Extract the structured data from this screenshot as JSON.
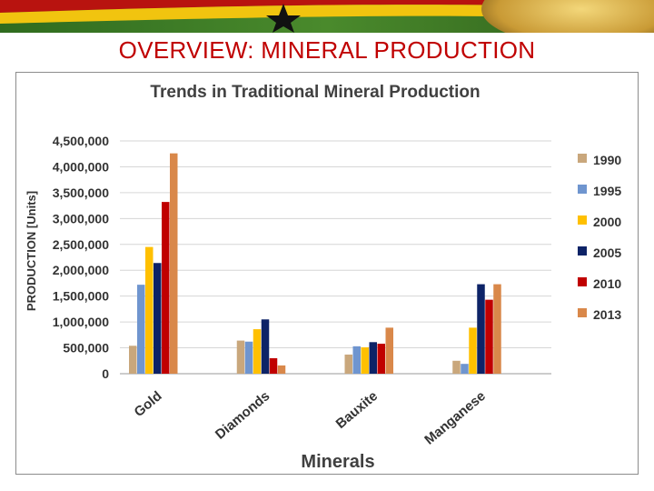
{
  "slide": {
    "title": "OVERVIEW: MINERAL PRODUCTION"
  },
  "chart_data": {
    "type": "bar",
    "title": "Trends in Traditional Mineral Production",
    "xlabel": "Minerals",
    "ylabel": "PRODUCTION [Units]",
    "ylim": [
      0,
      4500000
    ],
    "ytick_values": [
      0,
      500000,
      1000000,
      1500000,
      2000000,
      2500000,
      3000000,
      3500000,
      4000000,
      4500000
    ],
    "ytick_labels": [
      "0",
      "500,000",
      "1,000,000",
      "1,500,000",
      "2,000,000",
      "2,500,000",
      "3,000,000",
      "3,500,000",
      "4,000,000",
      "4,500,000"
    ],
    "grid": true,
    "legend_position": "right",
    "categories": [
      "Gold",
      "Diamonds",
      "Bauxite",
      "Manganese"
    ],
    "series": [
      {
        "name": "1990",
        "color": "#c9a77c",
        "values": [
          540000,
          640000,
          370000,
          250000
        ]
      },
      {
        "name": "1995",
        "color": "#6f95cf",
        "values": [
          1720000,
          620000,
          530000,
          190000
        ]
      },
      {
        "name": "2000",
        "color": "#ffc000",
        "values": [
          2450000,
          860000,
          510000,
          890000
        ]
      },
      {
        "name": "2005",
        "color": "#0d2367",
        "values": [
          2140000,
          1050000,
          610000,
          1730000
        ]
      },
      {
        "name": "2010",
        "color": "#c00000",
        "values": [
          3320000,
          300000,
          580000,
          1430000
        ]
      },
      {
        "name": "2013",
        "color": "#d9884a",
        "values": [
          4260000,
          160000,
          890000,
          1730000
        ]
      }
    ]
  }
}
